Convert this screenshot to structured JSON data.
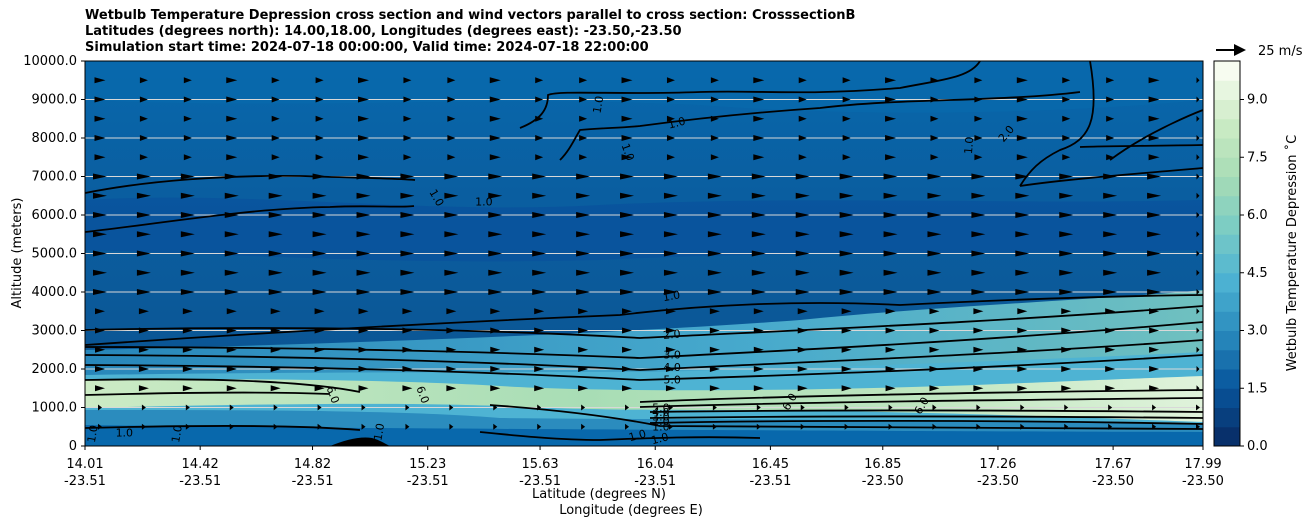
{
  "title_lines": [
    "Wetbulb Temperature Depression cross section and wind vectors parallel to cross section: CrosssectionB",
    "Latitudes (degrees north): 14.00,18.00, Longitudes (degrees east): -23.50,-23.50",
    "Simulation start time: 2024-07-18 00:00:00, Valid time: 2024-07-18 22:00:00"
  ],
  "chart_data": {
    "type": "heatmap",
    "title": "Wetbulb Temperature Depression cross section and wind vectors parallel to cross section: CrosssectionB",
    "xlabel_line1": "Latitude (degrees N)",
    "xlabel_line2": "Longitude (degrees E)",
    "ylabel": "Altitude (meters)",
    "ylim": [
      0,
      10000
    ],
    "yticks": [
      "0",
      "1000.0",
      "2000.0",
      "3000.0",
      "4000.0",
      "5000.0",
      "6000.0",
      "7000.0",
      "8000.0",
      "9000.0",
      "10000.0"
    ],
    "ytick_values": [
      0,
      1000,
      2000,
      3000,
      4000,
      5000,
      6000,
      7000,
      8000,
      9000,
      10000
    ],
    "xlim": [
      14.01,
      17.99
    ],
    "xtick_lats": [
      "14.01",
      "14.42",
      "14.82",
      "15.23",
      "15.63",
      "16.04",
      "16.45",
      "16.85",
      "17.26",
      "17.67",
      "17.99"
    ],
    "xtick_lons": [
      "-23.51",
      "-23.51",
      "-23.51",
      "-23.51",
      "-23.51",
      "-23.51",
      "-23.51",
      "-23.50",
      "-23.50",
      "-23.50",
      "-23.50"
    ],
    "xtick_values": [
      14.01,
      14.42,
      14.82,
      15.23,
      15.63,
      16.04,
      16.45,
      16.85,
      17.26,
      17.67,
      17.99
    ],
    "grid": "horizontal",
    "colorbar": {
      "label": "Wetbulb Temperature Depression ˚C",
      "ticks": [
        "0.0",
        "1.5",
        "3.0",
        "4.5",
        "6.0",
        "7.5",
        "9.0"
      ],
      "tick_values": [
        0,
        1.5,
        3,
        4.5,
        6,
        7.5,
        9
      ],
      "range": [
        0,
        10
      ],
      "colormap": [
        "#08306b",
        "#08589e",
        "#2b8cbe",
        "#4eb3d3",
        "#7bccc4",
        "#a8ddb5",
        "#ccebc5",
        "#f7fcf0"
      ]
    },
    "vector_key": {
      "label": "25 m/s",
      "speed": 25
    },
    "contour_levels": [
      "1.0",
      "2.0",
      "3.0",
      "4.0",
      "5.0",
      "6.0"
    ],
    "contour_labels": [
      {
        "text": "1.0",
        "x": 15.25,
        "y": 6400,
        "rot": 60
      },
      {
        "text": "1.0",
        "x": 15.43,
        "y": 6250,
        "rot": 0
      },
      {
        "text": "1.0",
        "x": 15.85,
        "y": 8850,
        "rot": -80
      },
      {
        "text": "1.0",
        "x": 15.93,
        "y": 7600,
        "rot": 70
      },
      {
        "text": "1.0",
        "x": 16.12,
        "y": 8300,
        "rot": -15
      },
      {
        "text": "1.0",
        "x": 17.17,
        "y": 7800,
        "rot": -85
      },
      {
        "text": "2.0",
        "x": 17.3,
        "y": 8050,
        "rot": -50
      },
      {
        "text": "1.0",
        "x": 16.1,
        "y": 3800,
        "rot": -10
      },
      {
        "text": "2.0",
        "x": 16.1,
        "y": 2800,
        "rot": -5
      },
      {
        "text": "3.0",
        "x": 16.1,
        "y": 2270,
        "rot": 0
      },
      {
        "text": "4.0",
        "x": 16.1,
        "y": 1950,
        "rot": 0
      },
      {
        "text": "5.0",
        "x": 16.1,
        "y": 1620,
        "rot": 0
      },
      {
        "text": "6.0",
        "x": 14.88,
        "y": 1300,
        "rot": 70
      },
      {
        "text": "6.0",
        "x": 15.2,
        "y": 1300,
        "rot": 70
      },
      {
        "text": "6.0",
        "x": 16.53,
        "y": 1100,
        "rot": -60
      },
      {
        "text": "6.0",
        "x": 17.0,
        "y": 1000,
        "rot": -60
      },
      {
        "text": "5.0",
        "x": 16.06,
        "y": 900,
        "rot": 0
      },
      {
        "text": "4.0",
        "x": 16.06,
        "y": 780,
        "rot": 0
      },
      {
        "text": "3.0",
        "x": 16.06,
        "y": 660,
        "rot": 0
      },
      {
        "text": "2.0",
        "x": 16.06,
        "y": 540,
        "rot": 0
      },
      {
        "text": "1.0",
        "x": 16.06,
        "y": 400,
        "rot": 0
      },
      {
        "text": "1.0",
        "x": 16.06,
        "y": 100,
        "rot": -15
      },
      {
        "text": "1.0",
        "x": 15.98,
        "y": 180,
        "rot": -15
      },
      {
        "text": "1.0",
        "x": 14.05,
        "y": 300,
        "rot": -80
      },
      {
        "text": "1.0",
        "x": 14.15,
        "y": 250,
        "rot": 0
      },
      {
        "text": "1.0",
        "x": 14.35,
        "y": 300,
        "rot": -80
      },
      {
        "text": "1.0",
        "x": 15.07,
        "y": 350,
        "rot": -80
      }
    ]
  }
}
